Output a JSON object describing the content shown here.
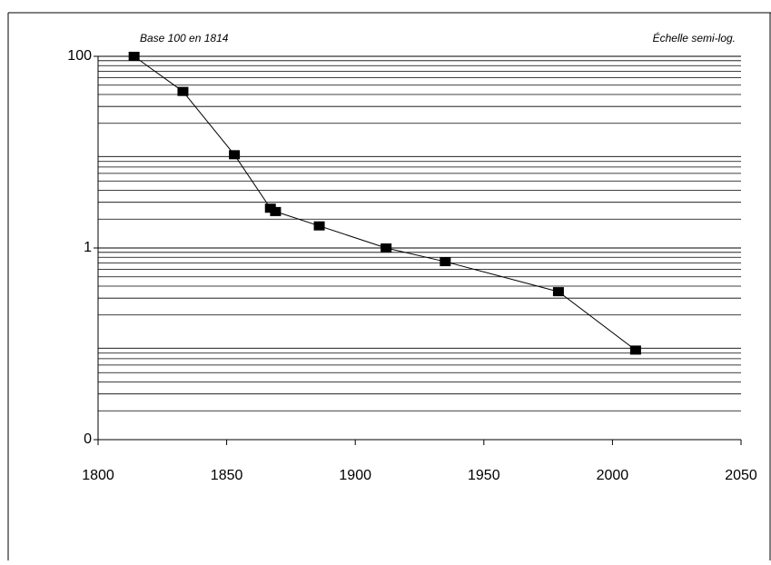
{
  "chart_data": {
    "type": "line",
    "annotations": [
      "Base 100 en 1814",
      "Échelle semi-log."
    ],
    "x": [
      1814,
      1833,
      1853,
      1867,
      1869,
      1886,
      1912,
      1935,
      1979,
      2009
    ],
    "series": [
      {
        "color": "#000000",
        "values": [
          100,
          43,
          9.4,
          2.6,
          2.4,
          1.7,
          1.0,
          0.72,
          0.35,
          0.086
        ]
      }
    ],
    "xlim": [
      1800,
      2050
    ],
    "xticks": [
      1800,
      1850,
      1900,
      1950,
      2000,
      2050
    ],
    "ylim": [
      0.01,
      100
    ],
    "yticks": [
      100,
      1,
      {
        "value": 0.01,
        "label": "0"
      }
    ],
    "log_y": true,
    "grid": true
  }
}
